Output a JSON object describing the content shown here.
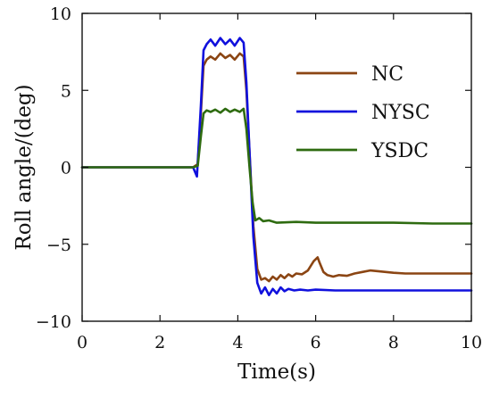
{
  "chart_data": {
    "type": "line",
    "xlabel": "Time(s)",
    "ylabel": "Roll angle/(deg)",
    "xlim": [
      0,
      10
    ],
    "ylim": [
      -10,
      10
    ],
    "x_ticks": [
      "0",
      "2",
      "4",
      "6",
      "8",
      "10"
    ],
    "y_ticks": [
      "−10",
      "−5",
      "0",
      "5",
      "10"
    ],
    "x_tick_values": [
      0,
      2,
      4,
      6,
      8,
      10
    ],
    "y_tick_values": [
      -10,
      -5,
      0,
      5,
      10
    ],
    "grid": false,
    "legend_position": "top-right",
    "series": [
      {
        "name": "NC",
        "color": "#8b4513",
        "x": [
          0,
          2.85,
          2.97,
          3.05,
          3.12,
          3.2,
          3.3,
          3.42,
          3.55,
          3.68,
          3.8,
          3.92,
          4.05,
          4.15,
          4.22,
          4.3,
          4.4,
          4.5,
          4.6,
          4.7,
          4.8,
          4.9,
          5.0,
          5.1,
          5.2,
          5.3,
          5.4,
          5.5,
          5.65,
          5.8,
          5.95,
          6.05,
          6.1,
          6.2,
          6.3,
          6.45,
          6.6,
          6.8,
          7.0,
          7.2,
          7.4,
          7.6,
          7.8,
          8.0,
          8.3,
          8.6,
          9.0,
          9.5,
          10.0
        ],
        "y": [
          0,
          0,
          0.2,
          3.5,
          6.6,
          7.0,
          7.2,
          7.0,
          7.4,
          7.1,
          7.3,
          7.0,
          7.4,
          7.2,
          5.0,
          1.0,
          -3.8,
          -6.6,
          -7.3,
          -7.2,
          -7.4,
          -7.1,
          -7.3,
          -7.0,
          -7.2,
          -6.95,
          -7.1,
          -6.9,
          -6.95,
          -6.7,
          -6.1,
          -5.85,
          -6.2,
          -6.8,
          -7.0,
          -7.1,
          -7.0,
          -7.05,
          -6.9,
          -6.8,
          -6.7,
          -6.75,
          -6.8,
          -6.85,
          -6.9,
          -6.9,
          -6.9,
          -6.9,
          -6.9
        ]
      },
      {
        "name": "NYSC",
        "color": "#1010dd",
        "x": [
          0,
          2.85,
          2.95,
          3.05,
          3.12,
          3.2,
          3.3,
          3.42,
          3.55,
          3.68,
          3.8,
          3.92,
          4.05,
          4.15,
          4.22,
          4.3,
          4.4,
          4.5,
          4.6,
          4.7,
          4.8,
          4.9,
          5.0,
          5.1,
          5.2,
          5.3,
          5.45,
          5.6,
          5.8,
          6.0,
          6.5,
          7.0,
          8.0,
          9.0,
          10.0
        ],
        "y": [
          0,
          0,
          -0.6,
          4.0,
          7.6,
          8.0,
          8.3,
          7.9,
          8.4,
          8.0,
          8.3,
          7.9,
          8.4,
          8.1,
          5.5,
          1.0,
          -4.5,
          -7.5,
          -8.2,
          -7.8,
          -8.3,
          -7.9,
          -8.2,
          -7.8,
          -8.05,
          -7.9,
          -8.0,
          -7.95,
          -8.0,
          -7.95,
          -8.0,
          -8.0,
          -8.0,
          -8.0,
          -8.0
        ]
      },
      {
        "name": "YSDC",
        "color": "#2e6b10",
        "x": [
          0,
          2.85,
          2.97,
          3.05,
          3.12,
          3.2,
          3.3,
          3.42,
          3.55,
          3.68,
          3.8,
          3.92,
          4.05,
          4.15,
          4.22,
          4.3,
          4.38,
          4.45,
          4.55,
          4.65,
          4.8,
          5.0,
          5.5,
          6.0,
          7.0,
          8.0,
          9.0,
          10.0
        ],
        "y": [
          0,
          0,
          0.1,
          2.0,
          3.5,
          3.7,
          3.6,
          3.75,
          3.55,
          3.8,
          3.6,
          3.75,
          3.6,
          3.8,
          2.5,
          0.0,
          -2.3,
          -3.45,
          -3.3,
          -3.5,
          -3.45,
          -3.6,
          -3.55,
          -3.6,
          -3.6,
          -3.6,
          -3.65,
          -3.65
        ]
      }
    ]
  }
}
